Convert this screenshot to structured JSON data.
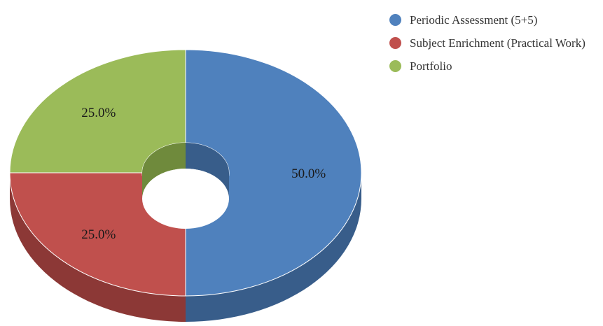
{
  "chart_data": {
    "type": "pie",
    "variant": "3d-donut",
    "title": "",
    "legend_position": "top-right",
    "slices": [
      {
        "name": "Periodic Assessment (5+5)",
        "value": 50.0,
        "label": "50.0%",
        "color": "#4f81bd",
        "side_color": "#385d8a"
      },
      {
        "name": "Subject Enrichment (Practical Work)",
        "value": 25.0,
        "label": "25.0%",
        "color": "#c0504d",
        "side_color": "#8c3836"
      },
      {
        "name": "Portfolio",
        "value": 25.0,
        "label": "25.0%",
        "color": "#9bbb59",
        "side_color": "#6f8a3c"
      }
    ]
  }
}
